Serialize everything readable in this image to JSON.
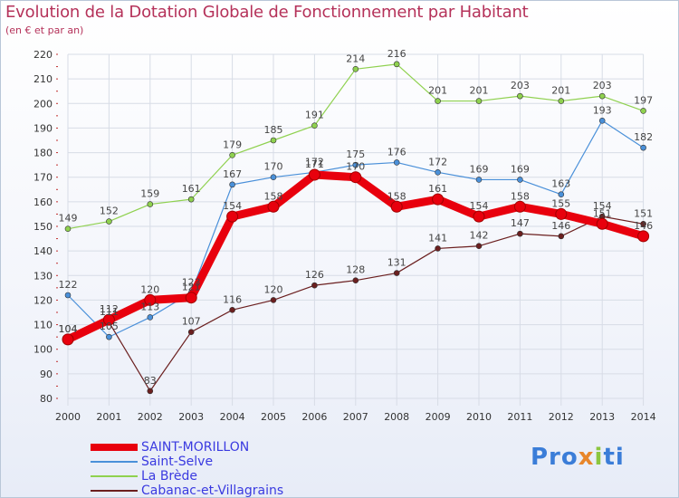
{
  "header": {
    "title": "Evolution de la Dotation Globale de Fonctionnement par Habitant",
    "subtitle": "(en € et par an)"
  },
  "logo": {
    "p1": "Pro",
    "p2": "x",
    "p3": "i",
    "p4": "ti"
  },
  "chart_data": {
    "type": "line",
    "title": "Evolution de la Dotation Globale de Fonctionnement par Habitant",
    "ylabel": "(en € et par an)",
    "xlabel": "",
    "ylim": [
      80,
      220
    ],
    "yticks": [
      80,
      90,
      100,
      110,
      120,
      130,
      140,
      150,
      160,
      170,
      180,
      190,
      200,
      210,
      220
    ],
    "categories": [
      "2000",
      "2001",
      "2002",
      "2003",
      "2004",
      "2005",
      "2006",
      "2007",
      "2008",
      "2009",
      "2010",
      "2011",
      "2012",
      "2013",
      "2014"
    ],
    "grid": true,
    "legend_position": "bottom-left",
    "series": [
      {
        "name": "SAINT-MORILLON",
        "color": "#e8000d",
        "values": [
          104,
          112,
          120,
          121,
          154,
          158,
          171,
          170,
          158,
          161,
          154,
          158,
          155,
          151,
          146
        ]
      },
      {
        "name": "Saint-Selve",
        "color": "#4a90d9",
        "values": [
          122,
          105,
          113,
          123,
          167,
          170,
          172,
          175,
          176,
          172,
          169,
          169,
          163,
          193,
          182
        ]
      },
      {
        "name": "La Brède",
        "color": "#8fd14f",
        "values": [
          149,
          152,
          159,
          161,
          179,
          185,
          191,
          214,
          216,
          201,
          201,
          203,
          201,
          203,
          197
        ]
      },
      {
        "name": "Cabanac-et-Villagrains",
        "color": "#6b1f1f",
        "values": [
          104,
          111,
          83,
          107,
          116,
          120,
          126,
          128,
          131,
          141,
          142,
          147,
          146,
          154,
          151
        ]
      }
    ]
  }
}
